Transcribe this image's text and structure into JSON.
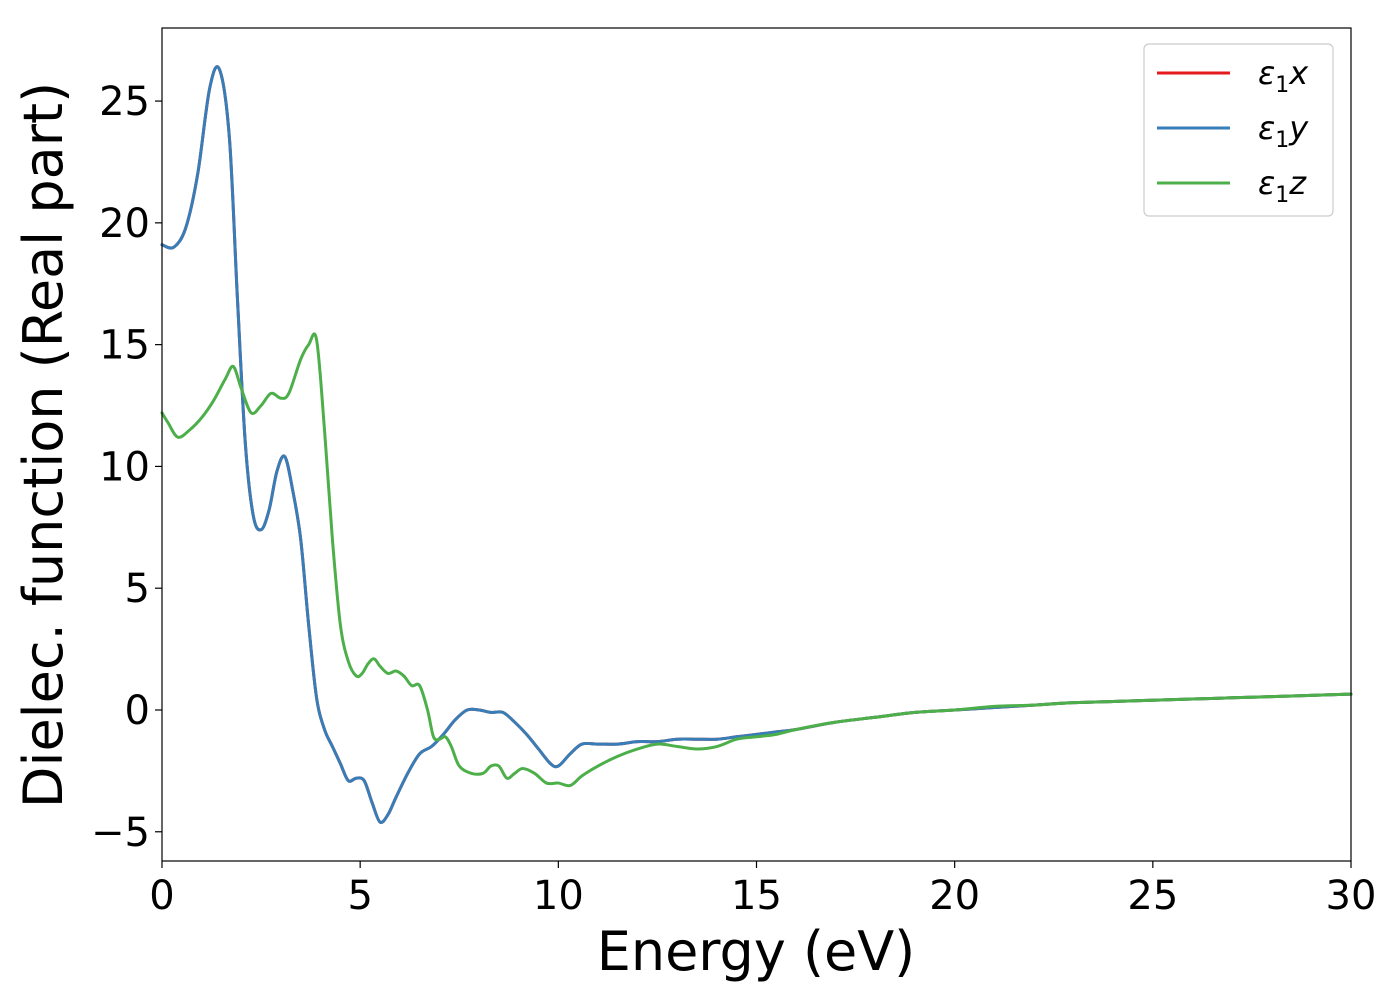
{
  "chart_data": {
    "type": "line",
    "xlabel": "Energy (eV)",
    "ylabel": "Dielec. function (Real part)",
    "xlim": [
      0,
      30
    ],
    "ylim": [
      -6.2,
      28
    ],
    "xticks": [
      0,
      5,
      10,
      15,
      20,
      25,
      30
    ],
    "yticks": [
      -5,
      0,
      5,
      10,
      15,
      20,
      25
    ],
    "xtick_labels": [
      "0",
      "5",
      "10",
      "15",
      "20",
      "25",
      "30"
    ],
    "ytick_labels": [
      "−5",
      "0",
      "5",
      "10",
      "15",
      "20",
      "25"
    ],
    "grid": false,
    "legend_position": "top-right",
    "series": [
      {
        "name": "ε1x",
        "legend_symbol": "ε",
        "legend_sub": "1",
        "legend_var": "x",
        "color": "#e41a1c",
        "x": [
          0,
          0.3,
          0.6,
          0.9,
          1.2,
          1.45,
          1.7,
          1.9,
          2.1,
          2.3,
          2.5,
          2.7,
          2.9,
          3.1,
          3.3,
          3.5,
          3.7,
          3.9,
          4.1,
          4.3,
          4.5,
          4.7,
          4.9,
          5.1,
          5.3,
          5.5,
          5.7,
          5.9,
          6.2,
          6.5,
          6.8,
          7.1,
          7.4,
          7.7,
          8.0,
          8.3,
          8.6,
          8.9,
          9.2,
          9.5,
          9.8,
          10.0,
          10.3,
          10.6,
          11.0,
          11.5,
          12.0,
          12.5,
          13.0,
          13.5,
          14.0,
          14.5,
          15.0,
          15.5,
          16.0,
          17.0,
          18.0,
          19.0,
          20.0,
          21.0,
          22.0,
          23.0,
          24.0,
          25.0,
          26.0,
          27.0,
          28.0,
          29.0,
          30.0
        ],
        "y": [
          19.1,
          19.0,
          19.8,
          22.0,
          25.5,
          26.3,
          23.5,
          17.0,
          11.0,
          8.0,
          7.4,
          8.2,
          9.8,
          10.4,
          9.0,
          7.0,
          3.5,
          0.5,
          -0.8,
          -1.5,
          -2.2,
          -2.9,
          -2.8,
          -2.9,
          -3.8,
          -4.6,
          -4.3,
          -3.6,
          -2.6,
          -1.8,
          -1.5,
          -1.0,
          -0.4,
          0.0,
          0.0,
          -0.1,
          -0.1,
          -0.5,
          -1.0,
          -1.6,
          -2.2,
          -2.3,
          -1.8,
          -1.4,
          -1.4,
          -1.4,
          -1.3,
          -1.3,
          -1.2,
          -1.2,
          -1.2,
          -1.1,
          -1.0,
          -0.9,
          -0.8,
          -0.5,
          -0.3,
          -0.1,
          0.0,
          0.1,
          0.2,
          0.3,
          0.35,
          0.4,
          0.45,
          0.5,
          0.55,
          0.6,
          0.65
        ]
      },
      {
        "name": "ε1y",
        "legend_symbol": "ε",
        "legend_sub": "1",
        "legend_var": "y",
        "color": "#377eb8",
        "x": [
          0,
          0.3,
          0.6,
          0.9,
          1.2,
          1.45,
          1.7,
          1.9,
          2.1,
          2.3,
          2.5,
          2.7,
          2.9,
          3.1,
          3.3,
          3.5,
          3.7,
          3.9,
          4.1,
          4.3,
          4.5,
          4.7,
          4.9,
          5.1,
          5.3,
          5.5,
          5.7,
          5.9,
          6.2,
          6.5,
          6.8,
          7.1,
          7.4,
          7.7,
          8.0,
          8.3,
          8.6,
          8.9,
          9.2,
          9.5,
          9.8,
          10.0,
          10.3,
          10.6,
          11.0,
          11.5,
          12.0,
          12.5,
          13.0,
          13.5,
          14.0,
          14.5,
          15.0,
          15.5,
          16.0,
          17.0,
          18.0,
          19.0,
          20.0,
          21.0,
          22.0,
          23.0,
          24.0,
          25.0,
          26.0,
          27.0,
          28.0,
          29.0,
          30.0
        ],
        "y": [
          19.1,
          19.0,
          19.8,
          22.0,
          25.5,
          26.3,
          23.5,
          17.0,
          11.0,
          8.0,
          7.4,
          8.2,
          9.8,
          10.4,
          9.0,
          7.0,
          3.5,
          0.5,
          -0.8,
          -1.5,
          -2.2,
          -2.9,
          -2.8,
          -2.9,
          -3.8,
          -4.6,
          -4.3,
          -3.6,
          -2.6,
          -1.8,
          -1.5,
          -1.0,
          -0.4,
          0.0,
          0.0,
          -0.1,
          -0.1,
          -0.5,
          -1.0,
          -1.6,
          -2.2,
          -2.3,
          -1.8,
          -1.4,
          -1.4,
          -1.4,
          -1.3,
          -1.3,
          -1.2,
          -1.2,
          -1.2,
          -1.1,
          -1.0,
          -0.9,
          -0.8,
          -0.5,
          -0.3,
          -0.1,
          0.0,
          0.1,
          0.2,
          0.3,
          0.35,
          0.4,
          0.45,
          0.5,
          0.55,
          0.6,
          0.65
        ]
      },
      {
        "name": "ε1z",
        "legend_symbol": "ε",
        "legend_sub": "1",
        "legend_var": "z",
        "color": "#4daf4a",
        "x": [
          0,
          0.15,
          0.4,
          0.7,
          1.0,
          1.3,
          1.6,
          1.8,
          2.0,
          2.25,
          2.5,
          2.75,
          3.0,
          3.2,
          3.5,
          3.7,
          3.9,
          4.1,
          4.3,
          4.5,
          4.7,
          4.9,
          5.05,
          5.2,
          5.35,
          5.5,
          5.7,
          5.9,
          6.1,
          6.3,
          6.5,
          6.7,
          6.85,
          7.0,
          7.15,
          7.3,
          7.5,
          7.8,
          8.1,
          8.3,
          8.5,
          8.7,
          8.9,
          9.1,
          9.4,
          9.7,
          10.0,
          10.3,
          10.6,
          11.0,
          11.5,
          12.0,
          12.5,
          13.0,
          13.5,
          14.0,
          14.5,
          15.0,
          15.5,
          16.0,
          17.0,
          18.0,
          19.0,
          20.0,
          21.0,
          22.0,
          23.0,
          24.0,
          25.0,
          26.0,
          27.0,
          28.0,
          29.0,
          30.0
        ],
        "y": [
          12.2,
          11.8,
          11.2,
          11.5,
          12.0,
          12.7,
          13.6,
          14.1,
          13.2,
          12.2,
          12.5,
          13.0,
          12.8,
          13.0,
          14.4,
          15.0,
          15.2,
          11.5,
          7.0,
          3.5,
          2.0,
          1.4,
          1.5,
          1.9,
          2.1,
          1.8,
          1.5,
          1.6,
          1.4,
          1.0,
          1.0,
          0.0,
          -1.1,
          -1.2,
          -1.1,
          -1.5,
          -2.3,
          -2.6,
          -2.6,
          -2.3,
          -2.3,
          -2.8,
          -2.6,
          -2.4,
          -2.6,
          -3.0,
          -3.0,
          -3.1,
          -2.7,
          -2.3,
          -1.9,
          -1.6,
          -1.4,
          -1.5,
          -1.6,
          -1.5,
          -1.2,
          -1.1,
          -1.0,
          -0.8,
          -0.5,
          -0.3,
          -0.1,
          0.0,
          0.15,
          0.2,
          0.3,
          0.35,
          0.4,
          0.45,
          0.5,
          0.55,
          0.6,
          0.65
        ]
      }
    ]
  }
}
